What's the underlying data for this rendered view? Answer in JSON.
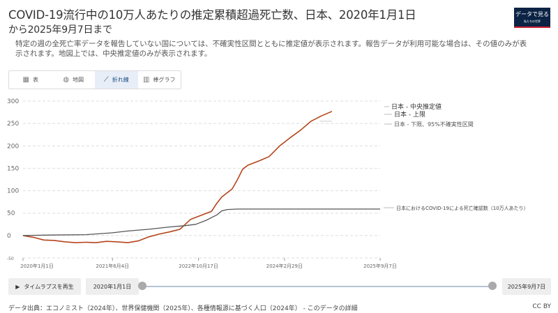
{
  "header": {
    "title_line1": "COVID-19流行中の10万人あたりの推定累積超過死亡数、日本、2020年1月1日",
    "title_line2": "から2025年9月7日まで",
    "subtitle": "特定の週の全死亡率データを報告していない国については、不確実性区間とともに推定値が表示されます。報告データが利用可能な場合は、その値のみが表示されます。地図上では、中央推定値のみが表示されます。",
    "logo_main": "データで見る",
    "logo_sub": "私たちの世界"
  },
  "tabs": [
    {
      "label": "表",
      "icon": "table-icon",
      "active": false
    },
    {
      "label": "地図",
      "icon": "globe-icon",
      "active": false
    },
    {
      "label": "折れ線",
      "icon": "line-chart-icon",
      "active": true
    },
    {
      "label": "棒グラフ",
      "icon": "bar-chart-icon",
      "active": false
    }
  ],
  "chart_data": {
    "type": "line",
    "x_tick_labels": [
      "2020年1月1日",
      "2021年6月4日",
      "2022年10月17日",
      "2024年2月29日",
      "2025年9月7日"
    ],
    "x_tick_dates": [
      "2020-01-01",
      "2021-06-04",
      "2022-10-17",
      "2024-02-29",
      "2025-09-07"
    ],
    "y_ticks": [
      -50,
      0,
      50,
      100,
      150,
      200,
      250,
      300
    ],
    "y_tick_labels": [
      "-50",
      "0",
      "50",
      "100",
      "150",
      "200",
      "250",
      "300"
    ],
    "ylim": [
      -50,
      300
    ],
    "xlim": [
      "2020-01-01",
      "2025-09-07"
    ],
    "grid": "horizontal-dashed",
    "series": [
      {
        "name": "日本 - 中央推定値",
        "color": "#b5441b",
        "points": [
          [
            "2020-01-01",
            0
          ],
          [
            "2020-03-01",
            -4
          ],
          [
            "2020-05-01",
            -10
          ],
          [
            "2020-07-01",
            -11
          ],
          [
            "2020-09-01",
            -14
          ],
          [
            "2020-11-01",
            -16
          ],
          [
            "2021-01-01",
            -15
          ],
          [
            "2021-03-01",
            -16
          ],
          [
            "2021-05-01",
            -13
          ],
          [
            "2021-07-01",
            -14
          ],
          [
            "2021-09-01",
            -16
          ],
          [
            "2021-11-01",
            -12
          ],
          [
            "2022-01-01",
            -3
          ],
          [
            "2022-03-01",
            3
          ],
          [
            "2022-05-01",
            8
          ],
          [
            "2022-07-01",
            14
          ],
          [
            "2022-08-01",
            25
          ],
          [
            "2022-09-01",
            36
          ],
          [
            "2022-11-01",
            45
          ],
          [
            "2023-01-01",
            54
          ],
          [
            "2023-02-01",
            72
          ],
          [
            "2023-03-01",
            86
          ],
          [
            "2023-05-01",
            104
          ],
          [
            "2023-06-01",
            125
          ],
          [
            "2023-07-01",
            148
          ],
          [
            "2023-08-01",
            157
          ],
          [
            "2023-10-01",
            166
          ],
          [
            "2023-12-01",
            176
          ],
          [
            "2024-02-01",
            200
          ],
          [
            "2024-04-01",
            218
          ],
          [
            "2024-06-01",
            235
          ],
          [
            "2024-08-01",
            255
          ],
          [
            "2024-10-01",
            267
          ],
          [
            "2024-12-01",
            277
          ]
        ]
      },
      {
        "name": "日本におけるCOVID-19による死亡確認数（10万人あたり）",
        "color": "#555555",
        "points": [
          [
            "2020-01-01",
            0
          ],
          [
            "2020-06-01",
            1
          ],
          [
            "2021-01-01",
            2
          ],
          [
            "2021-06-01",
            6
          ],
          [
            "2021-09-01",
            10
          ],
          [
            "2022-01-01",
            14
          ],
          [
            "2022-05-01",
            19
          ],
          [
            "2022-08-01",
            22
          ],
          [
            "2022-10-01",
            25
          ],
          [
            "2022-12-01",
            34
          ],
          [
            "2023-01-01",
            40
          ],
          [
            "2023-02-01",
            46
          ],
          [
            "2023-03-01",
            55
          ],
          [
            "2023-04-01",
            58
          ],
          [
            "2023-06-01",
            59
          ],
          [
            "2025-09-07",
            59
          ]
        ]
      }
    ],
    "labels": [
      {
        "text": "日本 - 中央推定値",
        "value": 277
      },
      {
        "text": "日本 - 上限",
        "value": 260
      },
      {
        "text": "日本 - 下限、95%不確実性区間",
        "value": 248
      },
      {
        "text": "日本におけるCOVID-19による死亡確認数（10万人あたり）",
        "value": 59
      }
    ]
  },
  "timeline": {
    "play_label": "タイムラプスを再生",
    "start_date": "2020年1月1日",
    "end_date": "2025年9月7日"
  },
  "footer": {
    "source": "データ出典：エコノミスト（2024年）、世界保健機関（2025年）、各種情報源に基づく人口（2024年） - このデータの詳細",
    "license": "CC BY"
  }
}
